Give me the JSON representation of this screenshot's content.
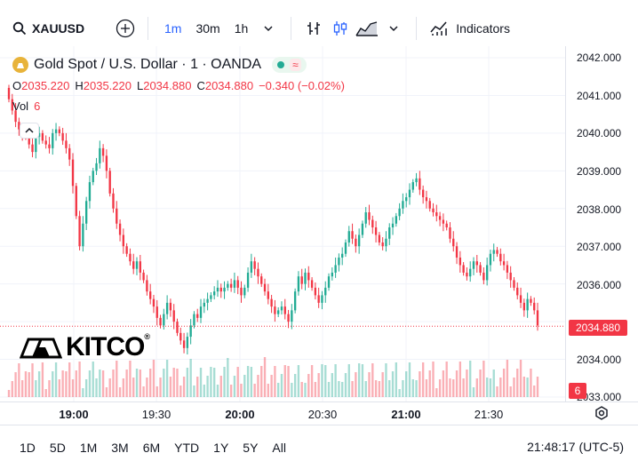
{
  "toolbar": {
    "symbol": "XAUUSD",
    "timeframes": [
      "1m",
      "30m",
      "1h"
    ],
    "active_timeframe": "1m",
    "indicators_label": "Indicators"
  },
  "legend": {
    "title": "Gold Spot / U.S. Dollar · 1 · OANDA",
    "status_wave": "≈",
    "o_label": "O",
    "o": "2035.220",
    "h_label": "H",
    "h": "2035.220",
    "l_label": "L",
    "l": "2034.880",
    "c_label": "C",
    "c": "2034.880",
    "change": "−0.340 (−0.02%)",
    "vol_label": "Vol",
    "vol": "6"
  },
  "watermark": {
    "brand": "KITCO",
    "mark": "®"
  },
  "price_axis": {
    "ticks": [
      "2042.000",
      "2041.000",
      "2040.000",
      "2039.000",
      "2038.000",
      "2037.000",
      "2036.000",
      "2034.000",
      "2033.000"
    ],
    "last_price": "2034.880",
    "volume_label": "6"
  },
  "time_axis": {
    "ticks": [
      "19:00",
      "19:30",
      "20:00",
      "20:30",
      "21:00",
      "21:30"
    ]
  },
  "bottom": {
    "ranges": [
      "1D",
      "5D",
      "1M",
      "3M",
      "6M",
      "YTD",
      "1Y",
      "5Y",
      "All"
    ],
    "clock": "21:48:17 (UTC-5)"
  },
  "colors": {
    "up": "#22ab94",
    "down": "#f23645",
    "accent": "#2962ff"
  },
  "chart_data": {
    "type": "candlestick",
    "ylim": [
      2033.0,
      2042.3
    ],
    "close": [
      2040.9,
      2040.6,
      2040.3,
      2040.1,
      2040.0,
      2039.9,
      2039.7,
      2039.5,
      2039.9,
      2040.0,
      2039.8,
      2039.7,
      2039.6,
      2040.0,
      2040.1,
      2040.0,
      2039.8,
      2039.6,
      2039.3,
      2038.6,
      2037.8,
      2037.0,
      2037.6,
      2038.2,
      2038.7,
      2039.0,
      2039.2,
      2039.6,
      2039.4,
      2039.0,
      2038.4,
      2038.0,
      2037.6,
      2037.3,
      2037.0,
      2036.8,
      2036.6,
      2036.4,
      2036.6,
      2036.3,
      2036.1,
      2035.8,
      2035.6,
      2035.4,
      2035.1,
      2034.9,
      2035.2,
      2035.5,
      2035.3,
      2035.0,
      2034.7,
      2034.5,
      2034.3,
      2034.6,
      2034.9,
      2035.2,
      2035.1,
      2035.4,
      2035.5,
      2035.6,
      2035.7,
      2035.8,
      2035.9,
      2035.8,
      2035.9,
      2036.0,
      2035.9,
      2036.1,
      2035.9,
      2035.7,
      2035.9,
      2036.3,
      2036.6,
      2036.4,
      2036.2,
      2036.0,
      2035.8,
      2035.6,
      2035.4,
      2035.2,
      2035.3,
      2035.4,
      2035.2,
      2035.0,
      2035.3,
      2035.8,
      2036.2,
      2036.0,
      2036.3,
      2036.1,
      2035.9,
      2035.7,
      2035.5,
      2035.7,
      2035.9,
      2036.2,
      2036.3,
      2036.5,
      2036.7,
      2036.8,
      2037.1,
      2037.4,
      2037.2,
      2037.0,
      2037.3,
      2037.6,
      2037.9,
      2037.7,
      2037.5,
      2037.3,
      2037.1,
      2037.0,
      2037.2,
      2037.5,
      2037.6,
      2037.8,
      2038.0,
      2038.2,
      2038.3,
      2038.5,
      2038.7,
      2038.8,
      2038.5,
      2038.3,
      2038.2,
      2038.0,
      2037.9,
      2037.8,
      2037.7,
      2037.6,
      2037.5,
      2037.2,
      2037.0,
      2036.7,
      2036.5,
      2036.3,
      2036.2,
      2036.4,
      2036.6,
      2036.5,
      2036.3,
      2036.1,
      2036.5,
      2036.8,
      2036.9,
      2036.8,
      2036.6,
      2036.5,
      2036.3,
      2036.1,
      2035.9,
      2035.7,
      2035.5,
      2035.3,
      2035.6,
      2035.5,
      2035.3,
      2034.9
    ]
  }
}
